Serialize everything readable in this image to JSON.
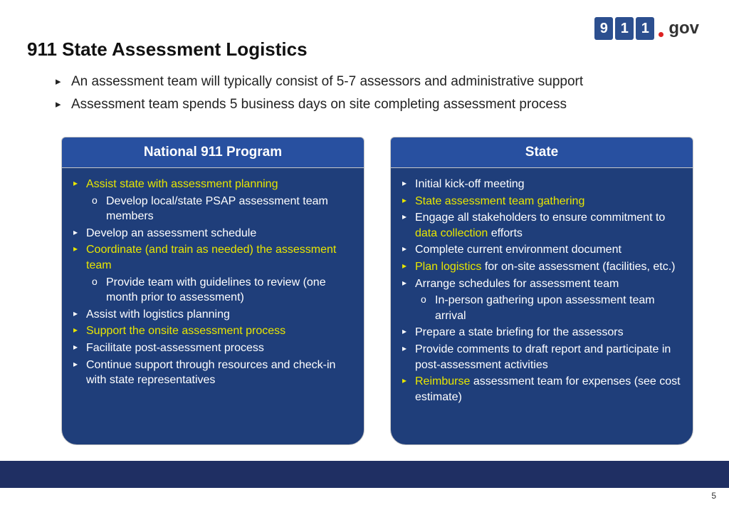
{
  "logo": {
    "d1": "9",
    "d2": "1",
    "d3": "1",
    "suffix": "gov"
  },
  "title": "911 State Assessment Logistics",
  "intro": [
    "An assessment team will typically consist of 5-7 assessors and administrative support",
    "Assessment team spends 5 business days on site completing assessment process"
  ],
  "left": {
    "header": "National 911 Program",
    "items": [
      {
        "t": "li1",
        "c": "yellow",
        "segs": [
          [
            "hl",
            "Assist state with assessment planning"
          ]
        ]
      },
      {
        "t": "li2",
        "segs": [
          [
            "",
            "Develop local/state PSAP assessment team members"
          ]
        ]
      },
      {
        "t": "li1",
        "c": "white",
        "segs": [
          [
            "",
            "Develop an assessment schedule"
          ]
        ]
      },
      {
        "t": "li1",
        "c": "yellow",
        "segs": [
          [
            "hl",
            "Coordinate (and train as needed) the assessment team"
          ]
        ]
      },
      {
        "t": "li2",
        "segs": [
          [
            "",
            "Provide team with guidelines to review (one month prior to assessment)"
          ]
        ]
      },
      {
        "t": "li1",
        "c": "white",
        "segs": [
          [
            "",
            "Assist with logistics planning"
          ]
        ]
      },
      {
        "t": "li1",
        "c": "yellow",
        "segs": [
          [
            "hl",
            "Support the onsite assessment process"
          ]
        ]
      },
      {
        "t": "li1",
        "c": "white",
        "segs": [
          [
            "",
            "Facilitate post-assessment process"
          ]
        ]
      },
      {
        "t": "li1",
        "c": "white",
        "segs": [
          [
            "",
            "Continue support through resources and check-in with state representatives"
          ]
        ]
      }
    ]
  },
  "right": {
    "header": "State",
    "items": [
      {
        "t": "li1",
        "c": "white",
        "segs": [
          [
            "",
            "Initial kick-off meeting"
          ]
        ]
      },
      {
        "t": "li1",
        "c": "yellow",
        "segs": [
          [
            "hl",
            "State assessment team gathering"
          ]
        ]
      },
      {
        "t": "li1",
        "c": "white",
        "segs": [
          [
            "",
            "Engage all stakeholders to ensure commitment to "
          ],
          [
            "hl",
            "data collection"
          ],
          [
            "",
            " efforts"
          ]
        ]
      },
      {
        "t": "li1",
        "c": "white",
        "segs": [
          [
            "",
            "Complete current environment document"
          ]
        ]
      },
      {
        "t": "li1",
        "c": "yellow",
        "segs": [
          [
            "hl",
            "Plan logistics "
          ],
          [
            "",
            "for on-site assessment (facilities, etc.)"
          ]
        ]
      },
      {
        "t": "li1",
        "c": "white",
        "segs": [
          [
            "",
            "Arrange schedules for assessment team"
          ]
        ]
      },
      {
        "t": "li2",
        "segs": [
          [
            "",
            "In-person gathering upon assessment team arrival"
          ]
        ]
      },
      {
        "t": "li1",
        "c": "white",
        "segs": [
          [
            "",
            "Prepare a state briefing for the assessors"
          ]
        ]
      },
      {
        "t": "li1",
        "c": "white",
        "segs": [
          [
            "",
            "Provide comments to draft report and participate in post-assessment activities"
          ]
        ]
      },
      {
        "t": "li1",
        "c": "yellow",
        "segs": [
          [
            "hl",
            "Reimburse "
          ],
          [
            "",
            "assessment team for expenses (see cost estimate)"
          ]
        ]
      }
    ]
  },
  "page": "5"
}
